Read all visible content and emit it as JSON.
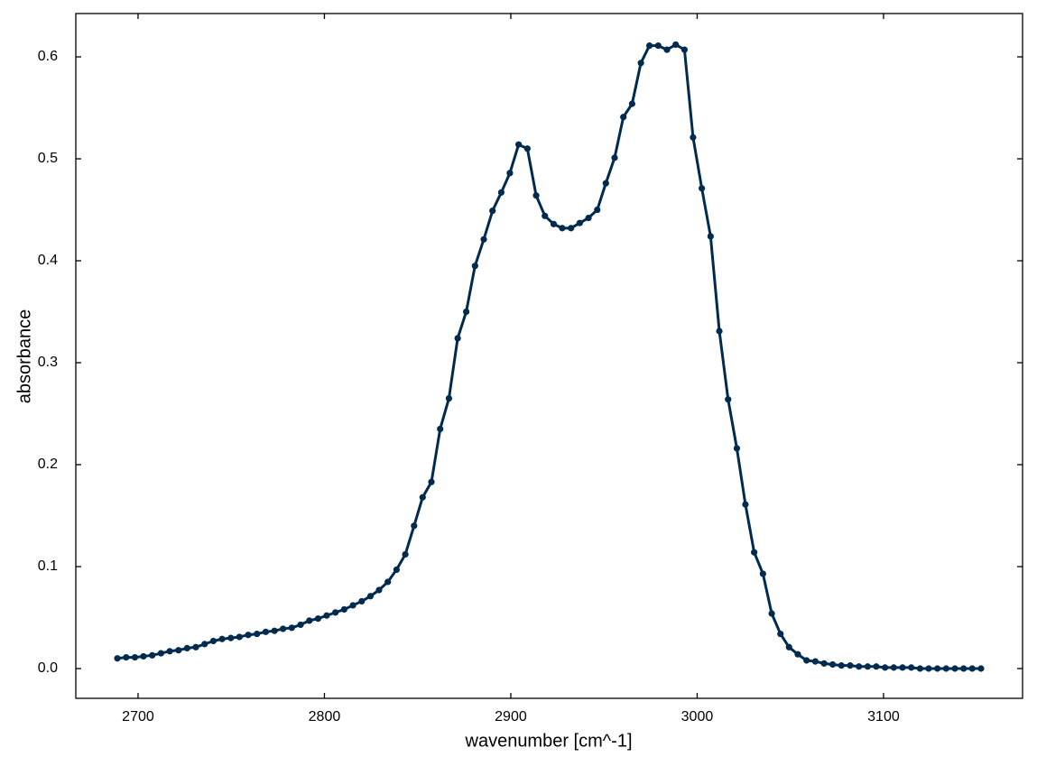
{
  "chart_data": {
    "type": "line",
    "xlabel": "wavenumber [cm^-1]",
    "ylabel": "absorbance",
    "xlim": [
      2666.6,
      3174.6
    ],
    "ylim": [
      -0.0292,
      0.6425
    ],
    "xticks": [
      2700,
      2800,
      2900,
      3000,
      3100
    ],
    "yticks": [
      {
        "value": 0,
        "label": "0.0"
      },
      0.1,
      0.2,
      0.3,
      0.4,
      0.5,
      0.6
    ],
    "grid": false,
    "markers": true,
    "series": [
      {
        "color": "#002b4f",
        "x": [
          2688.9,
          2693.6,
          2698.3,
          2702.9,
          2707.6,
          2712.3,
          2717.0,
          2721.7,
          2726.3,
          2731.0,
          2735.7,
          2740.4,
          2745.1,
          2749.8,
          2754.4,
          2759.1,
          2763.8,
          2768.5,
          2773.2,
          2777.8,
          2782.5,
          2787.2,
          2791.9,
          2796.6,
          2801.2,
          2805.9,
          2810.6,
          2815.3,
          2820.0,
          2824.7,
          2829.3,
          2834.0,
          2838.7,
          2843.4,
          2848.1,
          2852.7,
          2857.4,
          2862.1,
          2866.8,
          2871.5,
          2876.1,
          2880.8,
          2885.5,
          2890.2,
          2894.9,
          2899.5,
          2904.2,
          2908.9,
          2913.6,
          2918.3,
          2923.0,
          2927.6,
          2932.3,
          2937.0,
          2941.7,
          2946.4,
          2951.0,
          2955.7,
          2960.4,
          2965.1,
          2969.8,
          2974.4,
          2979.1,
          2983.8,
          2988.5,
          2993.2,
          2997.8,
          3002.5,
          3007.2,
          3011.9,
          3016.6,
          3021.3,
          3025.9,
          3030.6,
          3035.3,
          3040.0,
          3044.7,
          3049.3,
          3054.0,
          3058.7,
          3063.4,
          3068.1,
          3072.7,
          3077.4,
          3082.1,
          3086.8,
          3091.5,
          3096.1,
          3100.8,
          3105.5,
          3110.2,
          3114.9,
          3119.6,
          3124.2,
          3128.9,
          3133.6,
          3138.3,
          3143.0,
          3147.6,
          3152.3
        ],
        "values": [
          0.01,
          0.011,
          0.011,
          0.012,
          0.013,
          0.015,
          0.017,
          0.018,
          0.02,
          0.021,
          0.024,
          0.027,
          0.029,
          0.03,
          0.031,
          0.033,
          0.034,
          0.036,
          0.037,
          0.039,
          0.04,
          0.043,
          0.047,
          0.049,
          0.052,
          0.055,
          0.058,
          0.062,
          0.066,
          0.071,
          0.077,
          0.085,
          0.097,
          0.112,
          0.14,
          0.168,
          0.183,
          0.235,
          0.265,
          0.324,
          0.35,
          0.395,
          0.421,
          0.449,
          0.467,
          0.486,
          0.514,
          0.51,
          0.464,
          0.444,
          0.436,
          0.432,
          0.432,
          0.437,
          0.442,
          0.45,
          0.476,
          0.501,
          0.541,
          0.554,
          0.594,
          0.611,
          0.611,
          0.607,
          0.612,
          0.607,
          0.521,
          0.471,
          0.424,
          0.331,
          0.264,
          0.216,
          0.161,
          0.114,
          0.093,
          0.054,
          0.034,
          0.021,
          0.014,
          0.008,
          0.007,
          0.005,
          0.004,
          0.003,
          0.003,
          0.002,
          0.002,
          0.002,
          0.001,
          0.001,
          0.001,
          0.001,
          0.0,
          0.0,
          0.0,
          0.0,
          0.0,
          0.0,
          0.0,
          0.0
        ]
      }
    ]
  }
}
